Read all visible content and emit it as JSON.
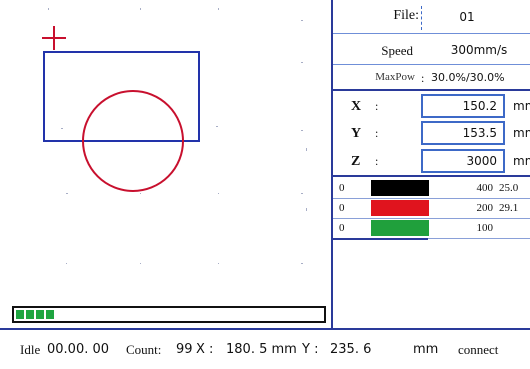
{
  "file": {
    "label": "File:",
    "value": "01"
  },
  "speed": {
    "label": "Speed",
    "value": "300mm/s"
  },
  "maxpow": {
    "label": "MaxPow",
    "value": "30.0%/30.0%"
  },
  "coords": [
    {
      "axis": "X",
      "value": "150.2",
      "unit": "mm"
    },
    {
      "axis": "Y",
      "value": "153.5",
      "unit": "mm"
    },
    {
      "axis": "Z",
      "value": "3000",
      "unit": "mm"
    }
  ],
  "layers": [
    {
      "num": "0",
      "color": "#000000",
      "speed": "400",
      "power": "25.0"
    },
    {
      "num": "0",
      "color": "#e0141e",
      "speed": "200",
      "power": "29.1"
    },
    {
      "num": "0",
      "color": "#20a03c",
      "speed": "100",
      "power": ""
    }
  ],
  "progress": {
    "percent": 13
  },
  "status": {
    "state": "Idle",
    "time": "00.00. 00",
    "count_label": "Count:",
    "count_value": "99",
    "x_label": "X :",
    "x_value": "180. 5 mm",
    "y_label": "Y :",
    "y_value": "235. 6",
    "unit": "mm",
    "connection": "connect"
  },
  "colors": {
    "frame": "#2a3a9a",
    "rect": "#2233aa",
    "circle": "#c8102e",
    "cross": "#c8102e",
    "progress": "#1ea540"
  }
}
